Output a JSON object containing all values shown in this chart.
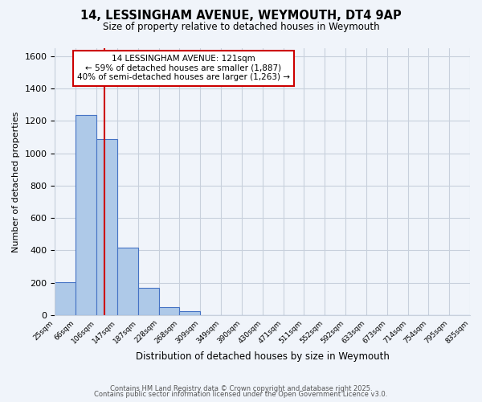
{
  "title": "14, LESSINGHAM AVENUE, WEYMOUTH, DT4 9AP",
  "subtitle": "Size of property relative to detached houses in Weymouth",
  "xlabel": "Distribution of detached houses by size in Weymouth",
  "ylabel": "Number of detached properties",
  "bar_values": [
    205,
    1235,
    1087,
    415,
    170,
    50,
    22,
    0,
    0,
    0,
    0,
    0,
    0,
    0,
    0,
    0,
    0,
    0,
    0,
    0
  ],
  "bar_labels": [
    "25sqm",
    "66sqm",
    "106sqm",
    "147sqm",
    "187sqm",
    "228sqm",
    "268sqm",
    "309sqm",
    "349sqm",
    "390sqm",
    "430sqm",
    "471sqm",
    "511sqm",
    "552sqm",
    "592sqm",
    "633sqm",
    "673sqm",
    "714sqm",
    "754sqm",
    "795sqm"
  ],
  "last_label": "835sqm",
  "bar_color": "#aec9e8",
  "bar_edge_color": "#4472c4",
  "vline_color": "#cc0000",
  "ylim": [
    0,
    1650
  ],
  "yticks": [
    0,
    200,
    400,
    600,
    800,
    1000,
    1200,
    1400,
    1600
  ],
  "annotation_title": "14 LESSINGHAM AVENUE: 121sqm",
  "annotation_line1": "← 59% of detached houses are smaller (1,887)",
  "annotation_line2": "40% of semi-detached houses are larger (1,263) →",
  "footer1": "Contains HM Land Registry data © Crown copyright and database right 2025.",
  "footer2": "Contains public sector information licensed under the Open Government Licence v3.0.",
  "background_color": "#f0f4fa",
  "grid_color": "#c8d0dc"
}
